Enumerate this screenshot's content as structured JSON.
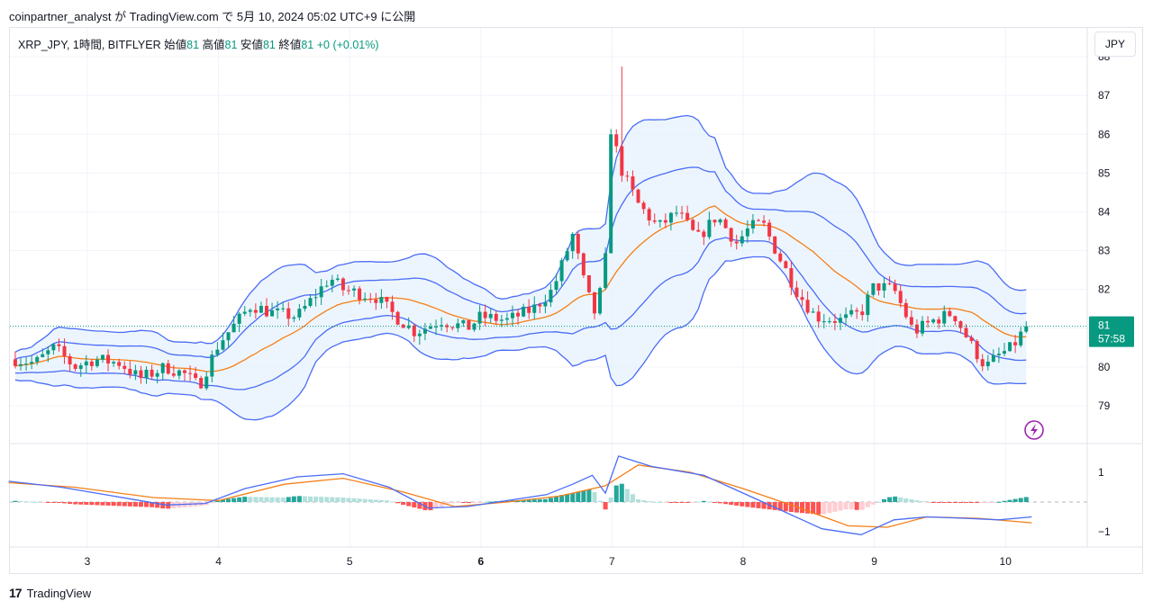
{
  "caption": "coinpartner_analyst が TradingView.com で 5月 10, 2024 05:02 UTC+9 に公開",
  "legend": {
    "symbol": "XRP_JPY, 1時間, BITFLYER",
    "open_label": "始値",
    "open": "81",
    "high_label": "高値",
    "high": "81",
    "low_label": "安値",
    "low": "81",
    "close_label": "終値",
    "close": "81",
    "change": "+0 (+0.01%)"
  },
  "currency_button": "JPY",
  "price_tag": {
    "price": "81",
    "countdown": "57:58"
  },
  "footer": {
    "logo": "17",
    "brand": "TradingView"
  },
  "icons": {
    "logo": "tradingview-logo-icon",
    "flash": "lightning-icon"
  },
  "colors": {
    "up": "#089981",
    "down": "#f23645",
    "band": "#4a6cf7",
    "basis": "#f57f17",
    "band_fill": "#e6f1fc",
    "macd": "#4a6cf7",
    "signal": "#f57f17",
    "hist_up_strong": "#26a69a",
    "hist_up_weak": "#b2dfdb",
    "hist_down_strong": "#ff5252",
    "hist_down_weak": "#ffcdd2",
    "price_line": "#089981"
  },
  "chart_data": [
    {
      "type": "candlestick",
      "title": "XRP_JPY, 1時間, BITFLYER",
      "x_range": [
        2.4,
        10.6
      ],
      "ylim": [
        78.3,
        88.0
      ],
      "y_ticks": [
        79,
        80,
        81,
        82,
        83,
        84,
        85,
        86,
        87,
        88
      ],
      "x_ticks": [
        "3",
        "4",
        "5",
        "6",
        "7",
        "8",
        "9",
        "10"
      ],
      "last_price": 81,
      "path": [
        {
          "x": 2.45,
          "y": 80.2
        },
        {
          "x": 2.6,
          "y": 80.1
        },
        {
          "x": 2.75,
          "y": 80.5
        },
        {
          "x": 2.9,
          "y": 80.0
        },
        {
          "x": 3.05,
          "y": 80.2
        },
        {
          "x": 3.25,
          "y": 80.1
        },
        {
          "x": 3.4,
          "y": 79.7
        },
        {
          "x": 3.6,
          "y": 80.0
        },
        {
          "x": 3.75,
          "y": 79.8
        },
        {
          "x": 3.85,
          "y": 79.5
        },
        {
          "x": 4.0,
          "y": 80.6
        },
        {
          "x": 4.1,
          "y": 81.0
        },
        {
          "x": 4.25,
          "y": 81.6
        },
        {
          "x": 4.4,
          "y": 81.4
        },
        {
          "x": 4.6,
          "y": 81.3
        },
        {
          "x": 4.75,
          "y": 81.9
        },
        {
          "x": 4.85,
          "y": 82.3
        },
        {
          "x": 4.95,
          "y": 82.0
        },
        {
          "x": 5.2,
          "y": 81.8
        },
        {
          "x": 5.35,
          "y": 81.3
        },
        {
          "x": 5.5,
          "y": 80.9
        },
        {
          "x": 5.7,
          "y": 81.2
        },
        {
          "x": 5.9,
          "y": 81.0
        },
        {
          "x": 6.0,
          "y": 81.3
        },
        {
          "x": 6.2,
          "y": 81.2
        },
        {
          "x": 6.4,
          "y": 81.5
        },
        {
          "x": 6.55,
          "y": 82.0
        },
        {
          "x": 6.7,
          "y": 83.4
        },
        {
          "x": 6.8,
          "y": 82.0
        },
        {
          "x": 6.88,
          "y": 81.3
        },
        {
          "x": 6.97,
          "y": 83.2
        },
        {
          "x": 7.0,
          "y": 86.0
        },
        {
          "x": 7.08,
          "y": 85.0
        },
        {
          "x": 7.2,
          "y": 84.2
        },
        {
          "x": 7.35,
          "y": 83.6
        },
        {
          "x": 7.5,
          "y": 84.0
        },
        {
          "x": 7.65,
          "y": 83.3
        },
        {
          "x": 7.8,
          "y": 83.9
        },
        {
          "x": 7.95,
          "y": 83.2
        },
        {
          "x": 8.05,
          "y": 83.6
        },
        {
          "x": 8.15,
          "y": 83.7
        },
        {
          "x": 8.25,
          "y": 83.0
        },
        {
          "x": 8.4,
          "y": 82.0
        },
        {
          "x": 8.55,
          "y": 81.3
        },
        {
          "x": 8.75,
          "y": 81.2
        },
        {
          "x": 8.9,
          "y": 81.4
        },
        {
          "x": 9.0,
          "y": 82.1
        },
        {
          "x": 9.15,
          "y": 82.0
        },
        {
          "x": 9.3,
          "y": 80.9
        },
        {
          "x": 9.45,
          "y": 81.2
        },
        {
          "x": 9.6,
          "y": 81.4
        },
        {
          "x": 9.75,
          "y": 80.5
        },
        {
          "x": 9.85,
          "y": 80.0
        },
        {
          "x": 9.95,
          "y": 80.3
        },
        {
          "x": 10.05,
          "y": 80.5
        },
        {
          "x": 10.15,
          "y": 81.0
        }
      ],
      "indicators": [
        "Bollinger Bands (inner)",
        "Bollinger Bands (outer)",
        "Basis"
      ]
    },
    {
      "type": "line",
      "title": "MACD",
      "ylim": [
        -1.2,
        1.2
      ],
      "y_ticks": [
        1,
        -1
      ],
      "series_shape": {
        "macd": [
          [
            2.4,
            0.7
          ],
          [
            2.8,
            0.5
          ],
          [
            3.2,
            0.2
          ],
          [
            3.6,
            -0.1
          ],
          [
            3.9,
            -0.05
          ],
          [
            4.2,
            0.45
          ],
          [
            4.6,
            0.85
          ],
          [
            4.95,
            0.95
          ],
          [
            5.3,
            0.5
          ],
          [
            5.6,
            -0.2
          ],
          [
            5.9,
            -0.15
          ],
          [
            6.2,
            0.05
          ],
          [
            6.5,
            0.25
          ],
          [
            6.7,
            0.6
          ],
          [
            6.85,
            0.9
          ],
          [
            6.95,
            0.3
          ],
          [
            7.05,
            1.55
          ],
          [
            7.3,
            1.2
          ],
          [
            7.7,
            0.9
          ],
          [
            8.0,
            0.3
          ],
          [
            8.3,
            -0.3
          ],
          [
            8.6,
            -0.9
          ],
          [
            8.9,
            -1.1
          ],
          [
            9.15,
            -0.6
          ],
          [
            9.4,
            -0.5
          ],
          [
            9.7,
            -0.55
          ],
          [
            9.95,
            -0.6
          ],
          [
            10.2,
            -0.5
          ]
        ],
        "signal": [
          [
            2.4,
            0.65
          ],
          [
            2.9,
            0.5
          ],
          [
            3.5,
            0.15
          ],
          [
            4.0,
            0.05
          ],
          [
            4.5,
            0.6
          ],
          [
            4.95,
            0.8
          ],
          [
            5.4,
            0.35
          ],
          [
            5.8,
            -0.15
          ],
          [
            6.2,
            0.0
          ],
          [
            6.6,
            0.2
          ],
          [
            6.95,
            0.55
          ],
          [
            7.2,
            1.25
          ],
          [
            7.6,
            1.0
          ],
          [
            8.0,
            0.45
          ],
          [
            8.4,
            -0.15
          ],
          [
            8.8,
            -0.8
          ],
          [
            9.1,
            -0.85
          ],
          [
            9.4,
            -0.5
          ],
          [
            9.8,
            -0.55
          ],
          [
            10.2,
            -0.7
          ]
        ]
      }
    }
  ]
}
